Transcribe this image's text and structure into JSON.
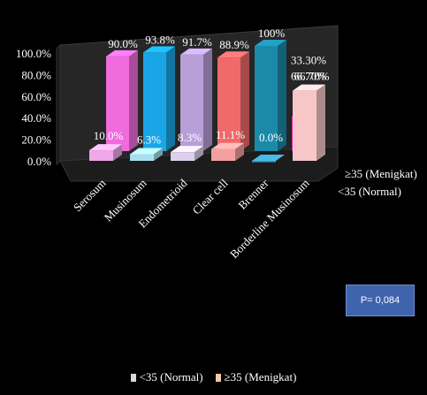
{
  "chart_data": {
    "type": "bar",
    "variant": "3d-clustered-depth",
    "categories": [
      "Serosum",
      "Musinosum",
      "Endometrioid",
      "Clear cell",
      "Brenner",
      "Borderline Musinosum"
    ],
    "series": [
      {
        "name": "<35 (Normal)",
        "values": [
          10.0,
          6.3,
          8.3,
          11.1,
          0.0,
          66.7
        ],
        "labels": [
          "10.0%",
          "6.3%",
          "8.3%",
          "11.1%",
          "0.0%",
          "66.70%"
        ],
        "colors": [
          "#f0a8e8",
          "#a8dff0",
          "#dcd0ee",
          "#f5a0a0",
          "#3b9fc4",
          "#f8c6c6"
        ]
      },
      {
        "name": "≥35 (Menigkat)",
        "values": [
          90.0,
          93.8,
          91.7,
          88.9,
          100.0,
          33.3
        ],
        "labels": [
          "90.0%",
          "93.8%",
          "91.7%",
          "88.9%",
          "100%",
          "33.30%"
        ],
        "colors": [
          "#f06cdc",
          "#1aa6e6",
          "#b99fd8",
          "#f06a6a",
          "#1b8aa8",
          "#e020b0"
        ]
      }
    ],
    "yticks": [
      "0.0%",
      "20.0%",
      "40.0%",
      "60.0%",
      "80.0%",
      "100.0%"
    ],
    "ylim": [
      0,
      100
    ],
    "depth_labels": [
      "≥35 (Menigkat)",
      "<35 (Normal)"
    ],
    "legend": {
      "position": "bottom",
      "items": [
        {
          "label": "<35 (Normal)",
          "color": "#d8d8d8"
        },
        {
          "label": "≥35 (Menigkat)",
          "color": "#f7c9a8"
        }
      ]
    },
    "annotation": "P= 0,084",
    "grid": false,
    "colors": {
      "background": "#000000",
      "text": "#ffffff",
      "wall": "#262626",
      "annotation_bg": "#3f63ac"
    }
  }
}
